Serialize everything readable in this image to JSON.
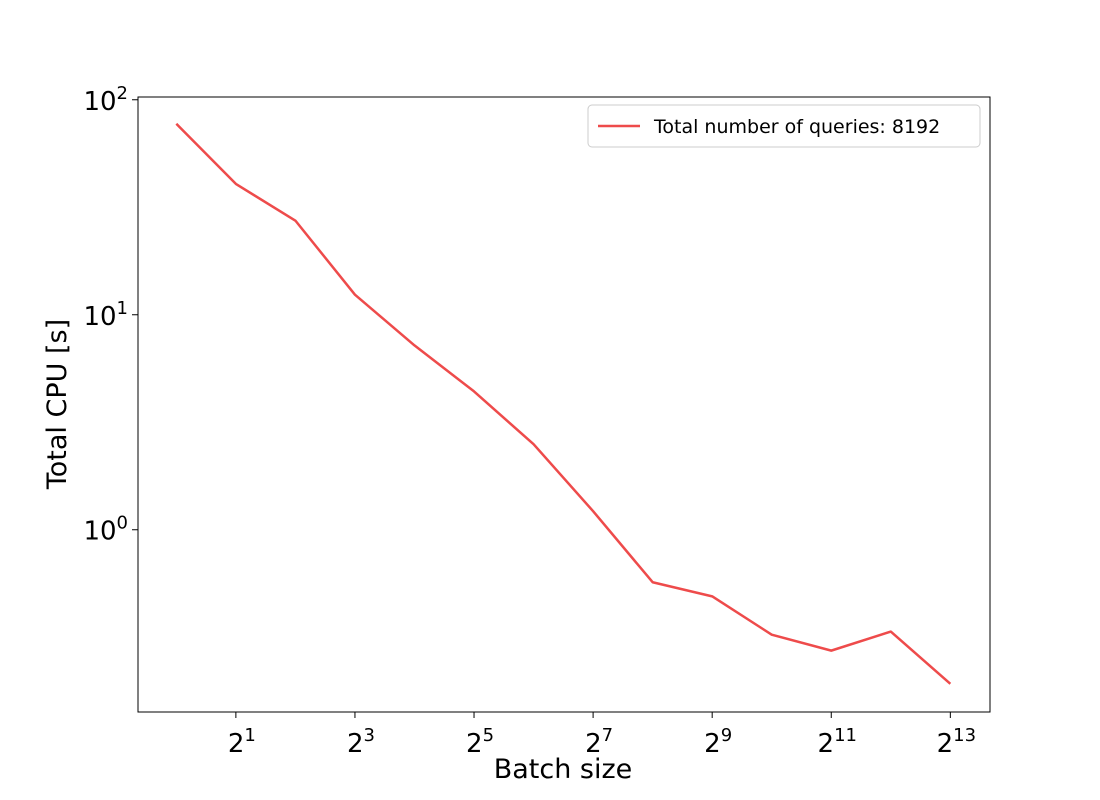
{
  "chart_data": {
    "type": "line",
    "x_label": "Batch size",
    "y_label": "Total CPU [s]",
    "x": [
      1,
      2,
      4,
      8,
      16,
      32,
      64,
      128,
      256,
      512,
      1024,
      2048,
      4096,
      8192
    ],
    "series": [
      {
        "name": "Total number of queries: 8192",
        "color": "#ee4b4b",
        "values": [
          77.3,
          40.6,
          27.4,
          12.4,
          7.2,
          4.4,
          2.5,
          1.22,
          0.57,
          0.49,
          0.325,
          0.274,
          0.336,
          0.192
        ]
      }
    ],
    "x_log_base": 2,
    "y_log_base": 10,
    "xlim": [
      0.64,
      13000
    ],
    "ylim": [
      0.142,
      103
    ],
    "xticks": [
      {
        "value": 2,
        "label": {
          "base": "2",
          "exponent": "1"
        }
      },
      {
        "value": 8,
        "label": {
          "base": "2",
          "exponent": "3"
        }
      },
      {
        "value": 32,
        "label": {
          "base": "2",
          "exponent": "5"
        }
      },
      {
        "value": 128,
        "label": {
          "base": "2",
          "exponent": "7"
        }
      },
      {
        "value": 512,
        "label": {
          "base": "2",
          "exponent": "9"
        }
      },
      {
        "value": 2048,
        "label": {
          "base": "2",
          "exponent": "11"
        }
      },
      {
        "value": 8192,
        "label": {
          "base": "2",
          "exponent": "13"
        }
      }
    ],
    "yticks": [
      {
        "value": 1,
        "label": {
          "base": "10",
          "exponent": "0"
        }
      },
      {
        "value": 10,
        "label": {
          "base": "10",
          "exponent": "1"
        }
      },
      {
        "value": 100,
        "label": {
          "base": "10",
          "exponent": "2"
        }
      }
    ],
    "grid": false,
    "legend_position": "upper-right"
  }
}
